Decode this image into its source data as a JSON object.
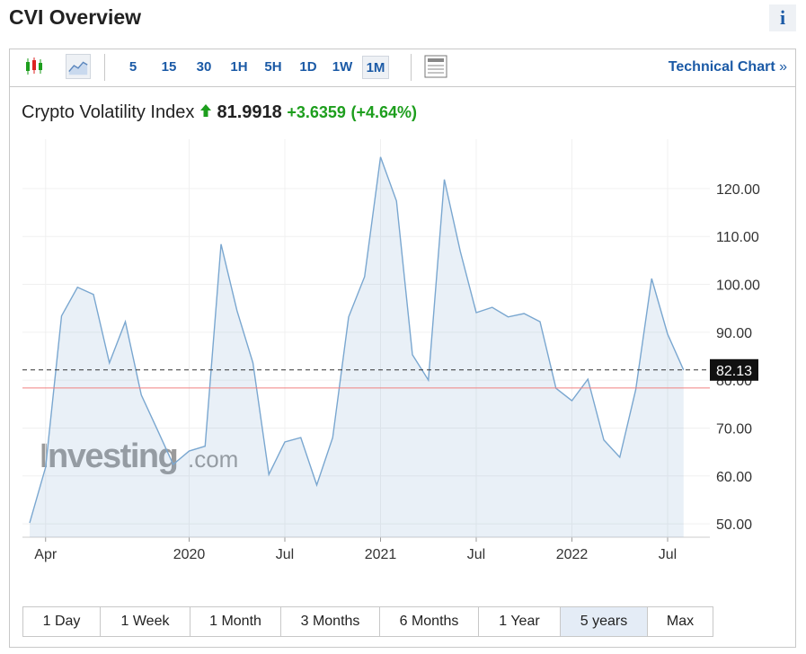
{
  "header": {
    "title": "CVI Overview",
    "info": "i"
  },
  "toolbar": {
    "intervals": [
      "5",
      "15",
      "30",
      "1H",
      "5H",
      "1D",
      "1W",
      "1M"
    ],
    "active_interval": "1M",
    "link": "Technical Chart",
    "link_arrow": "»"
  },
  "quote": {
    "name": "Crypto Volatility Index",
    "price": "81.9918",
    "change": "+3.6359",
    "change_pct": "(+4.64%)"
  },
  "watermark": {
    "brand": "Investing",
    "suffix": ".com"
  },
  "chart_data": {
    "type": "area",
    "x": [
      "2019-03",
      "2019-04",
      "2019-05",
      "2019-06",
      "2019-07",
      "2019-08",
      "2019-09",
      "2019-10",
      "2019-11",
      "2019-12",
      "2020-01",
      "2020-02",
      "2020-03",
      "2020-04",
      "2020-05",
      "2020-06",
      "2020-07",
      "2020-08",
      "2020-09",
      "2020-10",
      "2020-11",
      "2020-12",
      "2021-01",
      "2021-02",
      "2021-03",
      "2021-04",
      "2021-05",
      "2021-06",
      "2021-07",
      "2021-08",
      "2021-09",
      "2021-10",
      "2021-11",
      "2021-12",
      "2022-01",
      "2022-02",
      "2022-03",
      "2022-04",
      "2022-05",
      "2022-06",
      "2022-07",
      "2022-08"
    ],
    "values": [
      50.2,
      61.8,
      93.4,
      99.4,
      97.9,
      83.6,
      92.2,
      76.9,
      69.7,
      62.4,
      65.2,
      66.2,
      108.4,
      94.5,
      83.6,
      60.3,
      67.1,
      68.0,
      58.1,
      68.0,
      93.2,
      101.6,
      126.6,
      117.4,
      85.3,
      80.0,
      121.9,
      106.9,
      94.1,
      95.2,
      93.2,
      93.9,
      92.2,
      78.3,
      75.7,
      80.2,
      67.5,
      63.9,
      78.0,
      101.2,
      89.6,
      82.13
    ],
    "color": "#7aa7d0",
    "reference_line": 78.36,
    "reference_color": "#f08080",
    "ylim": [
      47.2,
      130.3
    ],
    "yticks": [
      {
        "value": 50,
        "label": "50.00"
      },
      {
        "value": 60,
        "label": "60.00"
      },
      {
        "value": 70,
        "label": "70.00"
      },
      {
        "value": 80,
        "label": "80.00"
      },
      {
        "value": 90,
        "label": "90.00"
      },
      {
        "value": 100,
        "label": "100.00"
      },
      {
        "value": 110,
        "label": "110.00"
      },
      {
        "value": 120,
        "label": "120.00"
      }
    ],
    "xticks": [
      {
        "value": "2019-04",
        "label": "Apr"
      },
      {
        "value": "2020-01",
        "label": "2020"
      },
      {
        "value": "2020-07",
        "label": "Jul"
      },
      {
        "value": "2021-01",
        "label": "2021"
      },
      {
        "value": "2021-07",
        "label": "Jul"
      },
      {
        "value": "2022-01",
        "label": "2022"
      },
      {
        "value": "2022-07",
        "label": "Jul"
      }
    ],
    "grid": true
  },
  "ranges": {
    "items": [
      "1 Day",
      "1 Week",
      "1 Month",
      "3 Months",
      "6 Months",
      "1 Year",
      "5 years",
      "Max"
    ],
    "active": "5 years"
  }
}
